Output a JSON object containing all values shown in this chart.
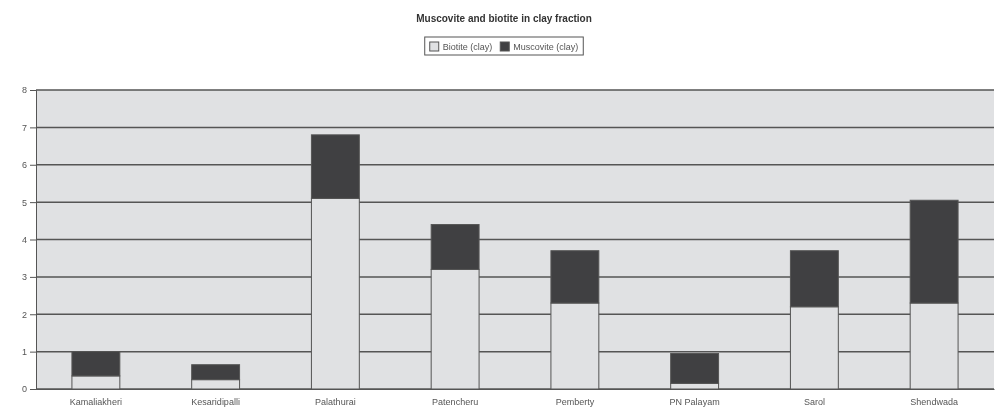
{
  "chart_data": {
    "type": "bar",
    "title": "Muscovite and biotite in clay fraction",
    "categories": [
      "Kamaliakheri",
      "Kesaridipalli",
      "Palathurai",
      "Patencheru",
      "Pemberty",
      "PN Palayam",
      "Sarol",
      "Shendwada"
    ],
    "series": [
      {
        "name": "Biotite (clay)",
        "color": "#e0e1e3",
        "values": [
          0.35,
          0.25,
          5.1,
          3.2,
          2.3,
          0.15,
          2.2,
          2.3
        ]
      },
      {
        "name": "Muscovite (clay)",
        "color": "#404042",
        "values": [
          0.65,
          0.4,
          1.7,
          1.2,
          1.4,
          0.8,
          1.5,
          2.75
        ]
      }
    ],
    "stacked": true,
    "ylim": [
      0,
      8
    ],
    "yticks": [
      0,
      1,
      2,
      3,
      4,
      5,
      6,
      7,
      8
    ],
    "grid": "y",
    "legend": "top"
  }
}
